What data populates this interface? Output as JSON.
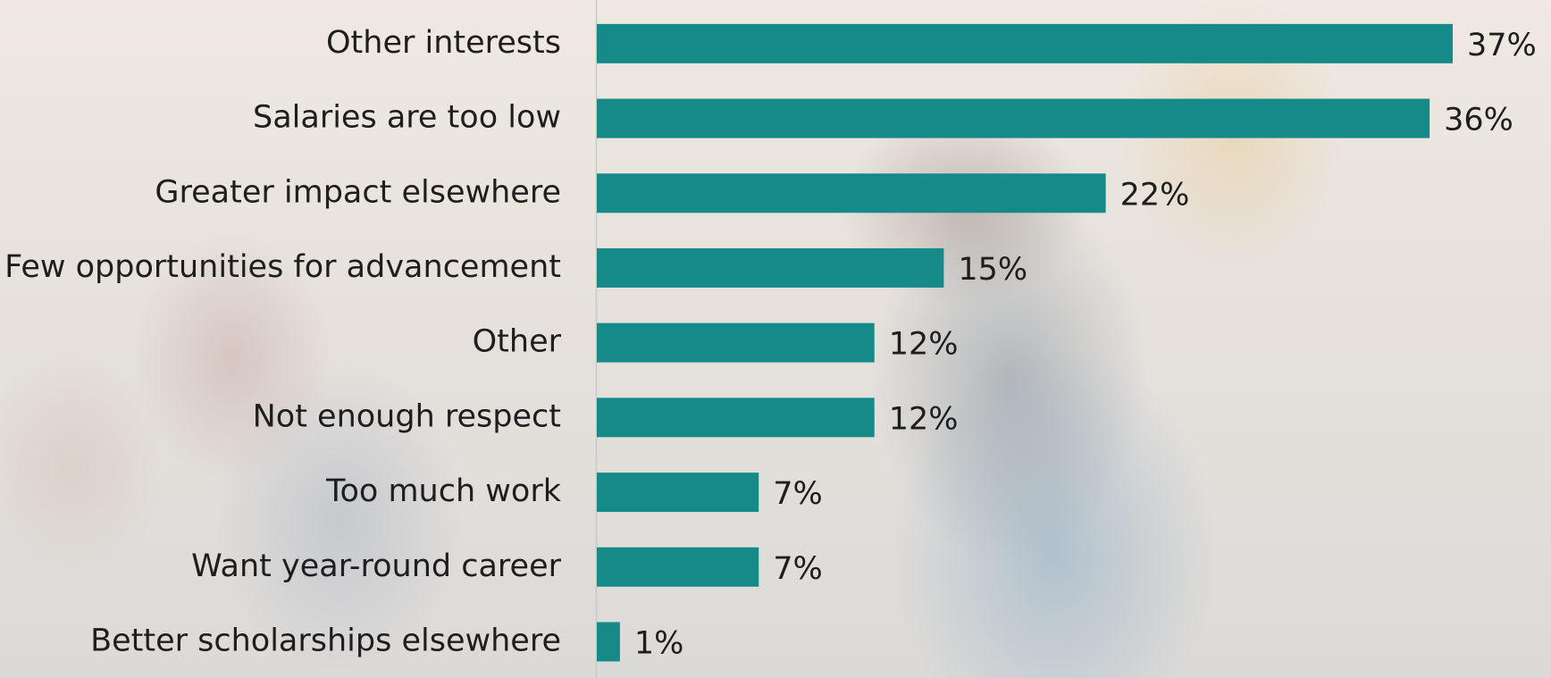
{
  "chart_data": {
    "type": "bar",
    "orientation": "horizontal",
    "categories": [
      "Other interests",
      "Salaries are too low",
      "Greater impact elsewhere",
      "Few opportunities for advancement",
      "Other",
      "Not enough respect",
      "Too much work",
      "Want year-round career",
      "Better scholarships elsewhere"
    ],
    "values": [
      37,
      36,
      22,
      15,
      12,
      12,
      7,
      7,
      1
    ],
    "value_labels": [
      "37%",
      "36%",
      "22%",
      "15%",
      "12%",
      "12%",
      "7%",
      "7%",
      "1%"
    ],
    "color": "#168a88"
  }
}
